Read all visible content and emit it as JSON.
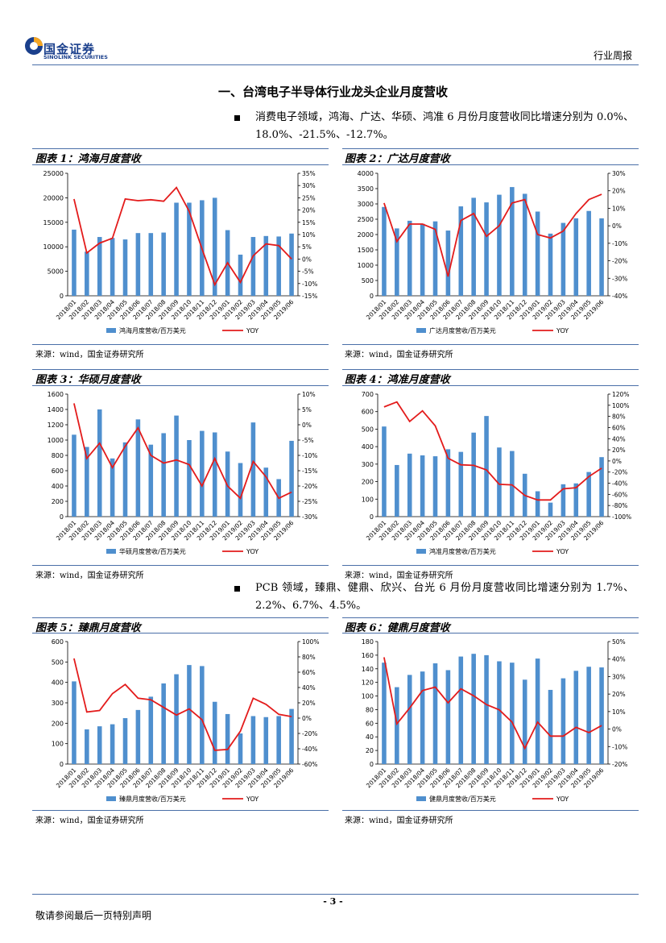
{
  "colors": {
    "bar": "#4f8fce",
    "line": "#e31b1b",
    "rule": "#4a6fa8",
    "brand": "#1a3f8c",
    "brand_accent": "#f5a623"
  },
  "header": {
    "logo_cn": "国金证券",
    "logo_en": "SINOLINK SECURITIES",
    "report_type": "行业周报"
  },
  "section": {
    "title": "一、台湾电子半导体行业龙头企业月度营收"
  },
  "paragraphs": [
    "消费电子领域，鸿海、广达、华硕、鸿准 6 月份月度营收同比增速分别为 0.0%、18.0%、-21.5%、-12.7%。",
    "PCB 领域，臻鼎、健鼎、欣兴、台光 6 月份月度营收同比增速分别为 1.7%、2.2%、6.7%、4.5%。"
  ],
  "source_note": "来源：wind，国金证券研究所",
  "footer": {
    "page": "- 3 -",
    "disclaimer": "敬请参阅最后一页特别声明"
  },
  "chart_data": [
    {
      "type": "bar",
      "title": "图表 1：鸿海月度营收",
      "categories": [
        "2018/01",
        "2018/02",
        "2018/03",
        "2018/04",
        "2018/05",
        "2018/06",
        "2018/07",
        "2018/08",
        "2018/09",
        "2018/10",
        "2018/11",
        "2018/12",
        "2019/01",
        "2019/02",
        "2019/03",
        "2019/04",
        "2019/05",
        "2019/06"
      ],
      "series": [
        {
          "name": "鸿海月度营收/百万美元",
          "values": [
            13500,
            9000,
            12000,
            11800,
            11500,
            12800,
            12800,
            12900,
            19000,
            19000,
            19500,
            20000,
            13400,
            8400,
            12000,
            12200,
            12100,
            12700
          ],
          "axis": "left"
        },
        {
          "name": "YOY",
          "values": [
            24.5,
            2.5,
            6.5,
            8.5,
            24.5,
            23.8,
            24.2,
            23.6,
            29.2,
            19.5,
            4.2,
            -10.5,
            -1.5,
            -9.5,
            1.3,
            6.2,
            5.5,
            0.0
          ],
          "axis": "right",
          "type": "line"
        }
      ],
      "yleft": {
        "min": 0,
        "max": 25000,
        "step": 5000,
        "ticks": [
          "0",
          "5000",
          "10000",
          "15000",
          "20000",
          "25000"
        ]
      },
      "yright": {
        "min": -15,
        "max": 35,
        "step": 5,
        "ticks": [
          "-15%",
          "-10%",
          "-5%",
          "0%",
          "5%",
          "10%",
          "15%",
          "20%",
          "25%",
          "30%",
          "35%"
        ]
      }
    },
    {
      "type": "bar",
      "title": "图表 2：广达月度营收",
      "categories": [
        "2018/01",
        "2018/02",
        "2018/03",
        "2018/04",
        "2018/05",
        "2018/06",
        "2018/07",
        "2018/08",
        "2018/09",
        "2018/10",
        "2018/11",
        "2018/12",
        "2019/01",
        "2019/02",
        "2019/03",
        "2019/04",
        "2019/05",
        "2019/06"
      ],
      "series": [
        {
          "name": "广达月度营收/百万美元",
          "values": [
            2900,
            2200,
            2450,
            2350,
            2430,
            2130,
            2920,
            3200,
            3050,
            3300,
            3550,
            3330,
            2750,
            2030,
            2380,
            2530,
            2770,
            2530
          ],
          "axis": "left"
        },
        {
          "name": "YOY",
          "values": [
            13,
            -9,
            1,
            1,
            -2,
            -29,
            3,
            7,
            -6,
            0,
            13,
            15,
            -5,
            -7,
            -3,
            7,
            15,
            18
          ],
          "axis": "right",
          "type": "line"
        }
      ],
      "yleft": {
        "min": 0,
        "max": 4000,
        "step": 500,
        "ticks": [
          "0",
          "500",
          "1000",
          "1500",
          "2000",
          "2500",
          "3000",
          "3500",
          "4000"
        ]
      },
      "yright": {
        "min": -40,
        "max": 30,
        "step": 10,
        "ticks": [
          "-40%",
          "-30%",
          "-20%",
          "-10%",
          "0%",
          "10%",
          "20%",
          "30%"
        ]
      }
    },
    {
      "type": "bar",
      "title": "图表 3：华硕月度营收",
      "categories": [
        "2018/01",
        "2018/02",
        "2018/03",
        "2018/04",
        "2018/05",
        "2018/06",
        "2018/07",
        "2018/08",
        "2018/09",
        "2018/10",
        "2018/11",
        "2018/12",
        "2019/01",
        "2019/02",
        "2019/03",
        "2019/04",
        "2019/05",
        "2019/06"
      ],
      "series": [
        {
          "name": "华硕月度营收/百万美元",
          "values": [
            1070,
            910,
            1400,
            760,
            970,
            1270,
            940,
            1090,
            1320,
            1000,
            1120,
            1100,
            850,
            700,
            1230,
            640,
            490,
            990
          ],
          "axis": "left"
        },
        {
          "name": "YOY",
          "values": [
            7,
            -11,
            -6,
            -14,
            -7,
            -1,
            -10,
            -12.5,
            -11.5,
            -13,
            -20,
            -11,
            -20,
            -24,
            -12,
            -17,
            -24,
            -22
          ],
          "axis": "right",
          "type": "line"
        }
      ],
      "yleft": {
        "min": 0,
        "max": 1600,
        "step": 200,
        "ticks": [
          "0",
          "200",
          "400",
          "600",
          "800",
          "1000",
          "1200",
          "1400",
          "1600"
        ]
      },
      "yright": {
        "min": -30,
        "max": 10,
        "step": 5,
        "ticks": [
          "-30%",
          "-25%",
          "-20%",
          "-15%",
          "-10%",
          "-5%",
          "0%",
          "5%",
          "10%"
        ]
      }
    },
    {
      "type": "bar",
      "title": "图表 4：鸿准月度营收",
      "categories": [
        "2018/01",
        "2018/02",
        "2018/03",
        "2018/04",
        "2018/05",
        "2018/06",
        "2018/07",
        "2018/08",
        "2018/09",
        "2018/10",
        "2018/11",
        "2018/12",
        "2019/01",
        "2019/02",
        "2019/03",
        "2019/04",
        "2019/05",
        "2019/06"
      ],
      "series": [
        {
          "name": "鸿准月度营收/百万美元",
          "values": [
            515,
            295,
            360,
            350,
            345,
            385,
            370,
            480,
            575,
            395,
            375,
            245,
            145,
            80,
            185,
            190,
            255,
            340
          ],
          "axis": "left"
        },
        {
          "name": "YOY",
          "values": [
            97,
            106,
            71,
            90,
            63,
            5,
            -7,
            -8,
            -16,
            -42,
            -43,
            -62,
            -70,
            -70,
            -50,
            -48,
            -28,
            -13
          ],
          "axis": "right",
          "type": "line"
        }
      ],
      "yleft": {
        "min": 0,
        "max": 700,
        "step": 100,
        "ticks": [
          "0",
          "100",
          "200",
          "300",
          "400",
          "500",
          "600",
          "700"
        ]
      },
      "yright": {
        "min": -100,
        "max": 120,
        "step": 20,
        "ticks": [
          "-100%",
          "-80%",
          "-60%",
          "-40%",
          "-20%",
          "0%",
          "20%",
          "40%",
          "60%",
          "80%",
          "100%",
          "120%"
        ]
      }
    },
    {
      "type": "bar",
      "title": "图表 5：臻鼎月度营收",
      "categories": [
        "2018/01",
        "2018/02",
        "2018/03",
        "2018/04",
        "2018/05",
        "2018/06",
        "2018/07",
        "2018/08",
        "2018/09",
        "2018/10",
        "2018/11",
        "2018/12",
        "2019/01",
        "2019/02",
        "2019/03",
        "2019/04",
        "2019/05",
        "2019/06"
      ],
      "series": [
        {
          "name": "臻鼎月度营收/百万美元",
          "values": [
            405,
            170,
            185,
            195,
            225,
            265,
            330,
            395,
            440,
            485,
            480,
            305,
            245,
            150,
            235,
            230,
            235,
            270
          ],
          "axis": "left"
        },
        {
          "name": "YOY",
          "values": [
            78,
            8,
            10,
            32,
            44,
            26,
            24,
            14,
            4,
            12,
            -2,
            -42,
            -41,
            -17,
            26,
            18,
            5,
            2
          ],
          "axis": "right",
          "type": "line"
        }
      ],
      "yleft": {
        "min": 0,
        "max": 600,
        "step": 100,
        "ticks": [
          "0",
          "100",
          "200",
          "300",
          "400",
          "500",
          "600"
        ]
      },
      "yright": {
        "min": -60,
        "max": 100,
        "step": 20,
        "ticks": [
          "-60%",
          "-40%",
          "-20%",
          "0%",
          "20%",
          "40%",
          "60%",
          "80%",
          "100%"
        ]
      }
    },
    {
      "type": "bar",
      "title": "图表 6：健鼎月度营收",
      "categories": [
        "2018/01",
        "2018/02",
        "2018/03",
        "2018/04",
        "2018/05",
        "2018/06",
        "2018/07",
        "2018/08",
        "2018/09",
        "2018/10",
        "2018/11",
        "2018/12",
        "2019/01",
        "2019/02",
        "2019/03",
        "2019/04",
        "2019/05",
        "2019/06"
      ],
      "series": [
        {
          "name": "健鼎月度营收/百万美元",
          "values": [
            149,
            113,
            131,
            136,
            148,
            138,
            158,
            162,
            160,
            151,
            149,
            124,
            155,
            109,
            126,
            137,
            143,
            142
          ],
          "axis": "left"
        },
        {
          "name": "YOY",
          "values": [
            41,
            3,
            12,
            22,
            24,
            15,
            23,
            19,
            14,
            11,
            4,
            -11,
            4,
            -4,
            -4,
            1,
            -2,
            2
          ],
          "axis": "right",
          "type": "line"
        }
      ],
      "yleft": {
        "min": 0,
        "max": 180,
        "step": 20,
        "ticks": [
          "0",
          "20",
          "40",
          "60",
          "80",
          "100",
          "120",
          "140",
          "160",
          "180"
        ]
      },
      "yright": {
        "min": -20,
        "max": 50,
        "step": 10,
        "ticks": [
          "-20%",
          "-10%",
          "0%",
          "10%",
          "20%",
          "30%",
          "40%",
          "50%"
        ]
      }
    }
  ]
}
